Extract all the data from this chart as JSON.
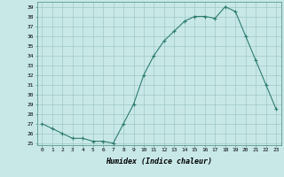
{
  "x": [
    0,
    1,
    2,
    3,
    4,
    5,
    6,
    7,
    8,
    9,
    10,
    11,
    12,
    13,
    14,
    15,
    16,
    17,
    18,
    19,
    20,
    21,
    22,
    23
  ],
  "y": [
    27,
    26.5,
    26,
    25.5,
    25.5,
    25.2,
    25.2,
    25,
    27,
    29,
    32,
    34,
    35.5,
    36.5,
    37.5,
    38,
    38,
    37.8,
    39,
    38.5,
    36,
    33.5,
    31,
    28.5
  ],
  "xlabel": "Humidex (Indice chaleur)",
  "ylim": [
    25,
    39
  ],
  "xlim": [
    0,
    23
  ],
  "yticks": [
    25,
    26,
    27,
    28,
    29,
    30,
    31,
    32,
    33,
    34,
    35,
    36,
    37,
    38,
    39
  ],
  "xticks": [
    0,
    1,
    2,
    3,
    4,
    5,
    6,
    7,
    8,
    9,
    10,
    11,
    12,
    13,
    14,
    15,
    16,
    17,
    18,
    19,
    20,
    21,
    22,
    23
  ],
  "line_color": "#2e7d6e",
  "marker": "+",
  "bg_color": "#c8e8e8",
  "grid_color": "#a0c8c8"
}
